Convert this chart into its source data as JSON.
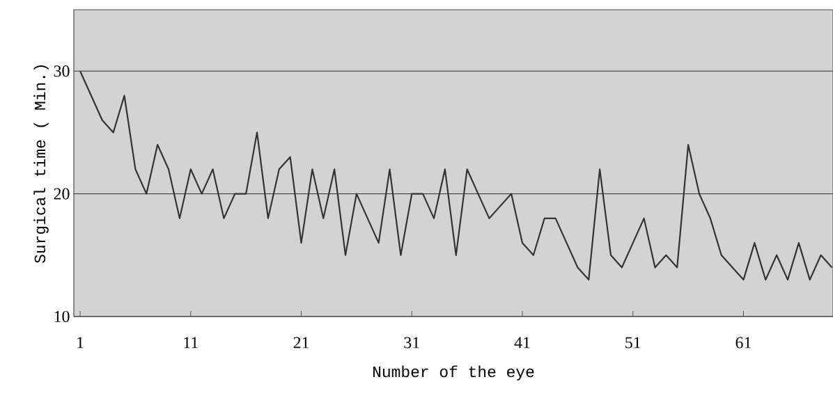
{
  "chart_data": {
    "type": "line",
    "xlabel": "Number of the eye",
    "ylabel": "Surgical time ( Min.)",
    "x": [
      1,
      2,
      3,
      4,
      5,
      6,
      7,
      8,
      9,
      10,
      11,
      12,
      13,
      14,
      15,
      16,
      17,
      18,
      19,
      20,
      21,
      22,
      23,
      24,
      25,
      26,
      27,
      28,
      29,
      30,
      31,
      32,
      33,
      34,
      35,
      36,
      37,
      38,
      39,
      40,
      41,
      42,
      43,
      44,
      45,
      46,
      47,
      48,
      49,
      50,
      51,
      52,
      53,
      54,
      55,
      56,
      57,
      58,
      59,
      60,
      61,
      62,
      63,
      64,
      65,
      66,
      67,
      68,
      69
    ],
    "series": [
      {
        "color": "#333333",
        "values": [
          30,
          28,
          26,
          25,
          28,
          22,
          20,
          24,
          22,
          18,
          22,
          20,
          22,
          18,
          20,
          20,
          25,
          18,
          22,
          23,
          16,
          22,
          18,
          22,
          15,
          20,
          18,
          16,
          22,
          15,
          20,
          20,
          18,
          22,
          15,
          22,
          20,
          18,
          19,
          20,
          16,
          15,
          18,
          18,
          16,
          14,
          13,
          22,
          15,
          14,
          16,
          18,
          14,
          15,
          14,
          24,
          20,
          18,
          15,
          14,
          13,
          16,
          13,
          15,
          13,
          16,
          13,
          15,
          14
        ]
      }
    ],
    "xlim": [
      0.43,
      69.1
    ],
    "ylim": [
      10,
      35
    ],
    "xticks": [
      1,
      11,
      21,
      31,
      41,
      51,
      61
    ],
    "yticks": [
      10,
      20,
      30
    ],
    "grid": "y",
    "marker": "none",
    "line_style": "solid"
  }
}
